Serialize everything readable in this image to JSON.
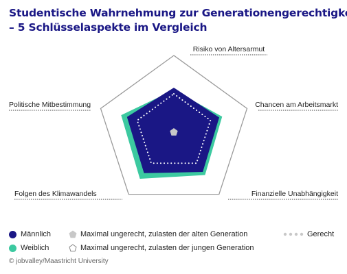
{
  "title_lines": [
    "Studentische Wahrnehmung zur Generationengerechtigkeit",
    "– 5 Schlüsselaspekte im Vergleich"
  ],
  "chart_data": {
    "type": "radar",
    "axes": [
      "Risiko von Altersarmut",
      "Chancen am Arbeitsmarkt",
      "Finanzielle Unabhängigkeit",
      "Folgen des Klimawandels",
      "Politische Mitbestimmung"
    ],
    "scale": {
      "center": "Maximal ungerecht, zulasten der alten Generation",
      "outer": "Maximal ungerecht, zulasten der jungen Generation",
      "neutral": "Gerecht"
    },
    "range": [
      0,
      1
    ],
    "neutral_value": 0.5,
    "series": [
      {
        "name": "Weiblich",
        "color": "#3cc9a0",
        "values": [
          0.55,
          0.66,
          0.69,
          0.75,
          0.72
        ]
      },
      {
        "name": "Männlich",
        "color": "#1a1785",
        "values": [
          0.58,
          0.62,
          0.64,
          0.66,
          0.64
        ]
      }
    ],
    "center_marker_color": "#c8c8c8"
  },
  "legend": {
    "male": "Männlich",
    "female": "Weiblich",
    "old_gen": "Maximal ungerecht, zulasten der alten Generation",
    "young_gen": "Maximal ungerecht, zulasten der jungen Generation",
    "fair": "Gerecht"
  },
  "source": "© jobvalley/Maastricht University"
}
